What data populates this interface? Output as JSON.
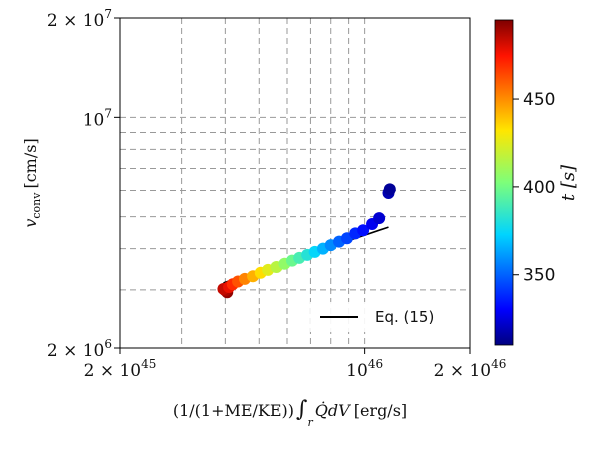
{
  "chart_data": {
    "type": "scatter",
    "xscale": "log",
    "yscale": "log",
    "xlim": [
      2e+45,
      2e+46
    ],
    "ylim": [
      2000000.0,
      20000000.0
    ],
    "xlabel": "(1/(1+ME/KE)) ∫_r Q̇ dV [erg/s]",
    "ylabel": "v_conv [cm/s]",
    "x_tick_labels": [
      {
        "value": 2e+45,
        "base": "2 × 10",
        "exp": "45"
      },
      {
        "value": 1e+46,
        "base": "10",
        "exp": "46"
      },
      {
        "value": 2e+46,
        "base": "2 × 10",
        "exp": "46"
      }
    ],
    "y_tick_labels": [
      {
        "value": 2000000.0,
        "base": "2 × 10",
        "exp": "6"
      },
      {
        "value": 10000000.0,
        "base": "10",
        "exp": "7"
      },
      {
        "value": 20000000.0,
        "base": "2 × 10",
        "exp": "7"
      }
    ],
    "grid": true,
    "colorbar": {
      "label": "t [s]",
      "range": [
        310,
        495
      ],
      "ticks": [
        350,
        400,
        450
      ],
      "colormap": "jet"
    },
    "points": [
      {
        "x": 4.05e+45,
        "y": 2950000.0,
        "t": 492
      },
      {
        "x": 4e+45,
        "y": 2990000.0,
        "t": 488
      },
      {
        "x": 3.95e+45,
        "y": 3020000.0,
        "t": 484
      },
      {
        "x": 4.1e+45,
        "y": 3060000.0,
        "t": 478
      },
      {
        "x": 4.2e+45,
        "y": 3120000.0,
        "t": 470
      },
      {
        "x": 4.35e+45,
        "y": 3180000.0,
        "t": 462
      },
      {
        "x": 4.55e+45,
        "y": 3240000.0,
        "t": 452
      },
      {
        "x": 4.8e+45,
        "y": 3300000.0,
        "t": 443
      },
      {
        "x": 5.05e+45,
        "y": 3380000.0,
        "t": 434
      },
      {
        "x": 5.3e+45,
        "y": 3450000.0,
        "t": 425
      },
      {
        "x": 5.6e+45,
        "y": 3520000.0,
        "t": 416
      },
      {
        "x": 5.9e+45,
        "y": 3600000.0,
        "t": 407
      },
      {
        "x": 6.2e+45,
        "y": 3680000.0,
        "t": 398
      },
      {
        "x": 6.5e+45,
        "y": 3750000.0,
        "t": 390
      },
      {
        "x": 6.85e+45,
        "y": 3830000.0,
        "t": 382
      },
      {
        "x": 7.2e+45,
        "y": 3910000.0,
        "t": 374
      },
      {
        "x": 7.6e+45,
        "y": 4000000.0,
        "t": 366
      },
      {
        "x": 8e+45,
        "y": 4100000.0,
        "t": 358
      },
      {
        "x": 8.45e+45,
        "y": 4200000.0,
        "t": 350
      },
      {
        "x": 8.9e+45,
        "y": 4300000.0,
        "t": 344
      },
      {
        "x": 9.4e+45,
        "y": 4450000.0,
        "t": 338
      },
      {
        "x": 9.9e+45,
        "y": 4550000.0,
        "t": 333
      },
      {
        "x": 1.05e+46,
        "y": 4750000.0,
        "t": 328
      },
      {
        "x": 1.1e+46,
        "y": 4950000.0,
        "t": 323
      },
      {
        "x": 1.17e+46,
        "y": 5900000.0,
        "t": 318
      },
      {
        "x": 1.18e+46,
        "y": 6050000.0,
        "t": 314
      }
    ],
    "fit_line": {
      "name": "Eq. (15)",
      "x": [
        3.95e+45,
        1.17e+46
      ],
      "y": [
        3150000.0,
        4650000.0
      ]
    },
    "legend_position": "lower-right"
  }
}
